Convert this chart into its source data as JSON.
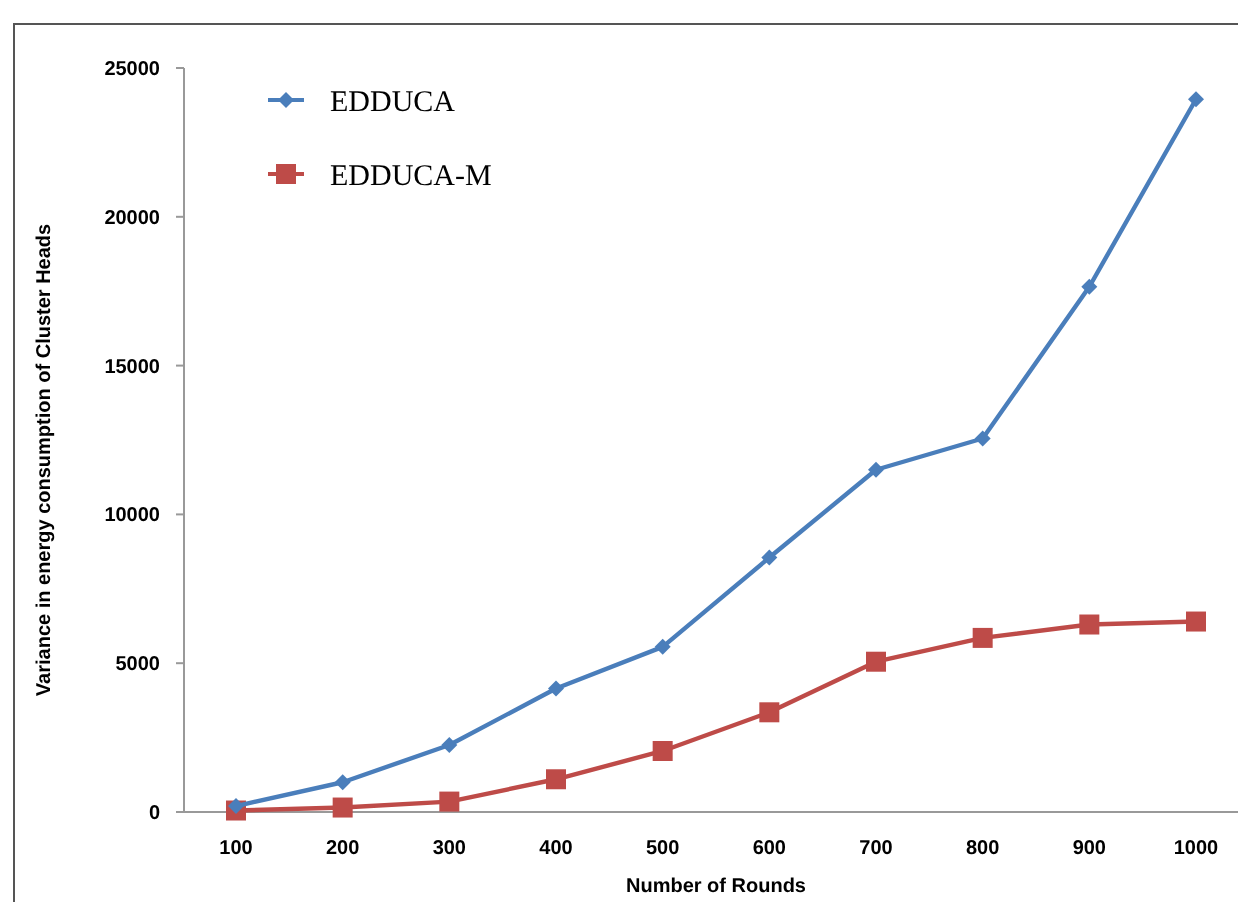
{
  "chart_data": {
    "type": "line",
    "xlabel": "Number of Rounds",
    "ylabel": "Variance in energy consumption of Cluster Heads",
    "categories": [
      "100",
      "200",
      "300",
      "400",
      "500",
      "600",
      "700",
      "800",
      "900",
      "1000"
    ],
    "ylim": [
      0,
      25000
    ],
    "yticks": [
      0,
      5000,
      10000,
      15000,
      20000,
      25000
    ],
    "grid": false,
    "legend": "top left",
    "line_style": "solid",
    "series": [
      {
        "name": "EDDUCA",
        "color": "#4a7ebb",
        "marker": "diamond",
        "values": [
          200,
          1000,
          2250,
          4150,
          5550,
          8550,
          11500,
          12550,
          17650,
          23950
        ]
      },
      {
        "name": "EDDUCA-M",
        "color": "#be4b48",
        "marker": "square",
        "values": [
          50,
          150,
          350,
          1100,
          2050,
          3350,
          5050,
          5850,
          6300,
          6400
        ]
      }
    ]
  }
}
